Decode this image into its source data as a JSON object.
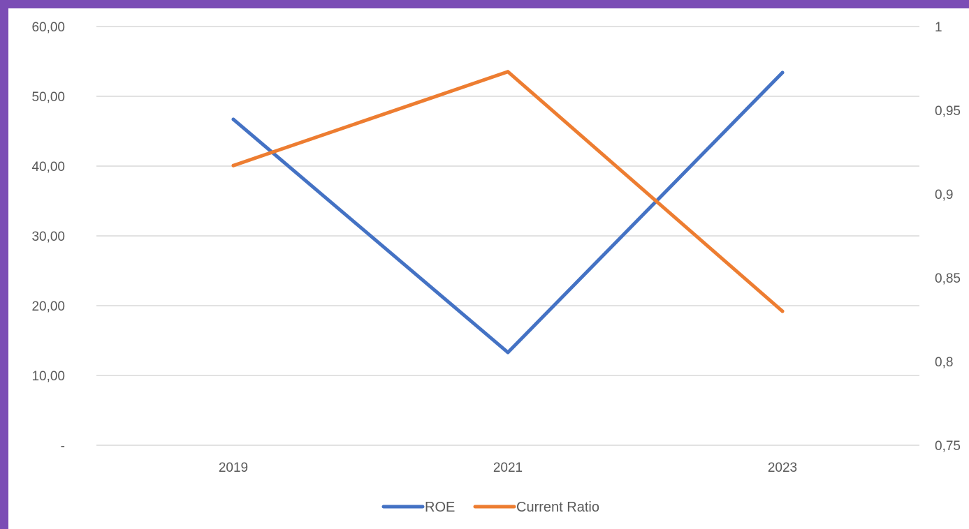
{
  "chart_data": {
    "type": "line",
    "categories": [
      "2019",
      "2021",
      "2023"
    ],
    "series": [
      {
        "name": "ROE",
        "axis": "left",
        "values": [
          46.7,
          13.3,
          53.4
        ],
        "color": "#4472c4"
      },
      {
        "name": "Current Ratio",
        "axis": "right",
        "values": [
          0.917,
          0.973,
          0.83
        ],
        "color": "#ed7d31"
      }
    ],
    "left_axis": {
      "ylim": [
        0,
        60
      ],
      "ticks": [
        0,
        10,
        20,
        30,
        40,
        50,
        60
      ],
      "tick_labels": [
        "-",
        "10,00",
        "20,00",
        "30,00",
        "40,00",
        "50,00",
        "60,00"
      ]
    },
    "right_axis": {
      "ylim": [
        0.75,
        1
      ],
      "ticks": [
        0.75,
        0.8,
        0.85,
        0.9,
        0.95,
        1
      ],
      "tick_labels": [
        "0,75",
        "0,8",
        "0,85",
        "0,9",
        "0,95",
        "1"
      ]
    },
    "grid": true,
    "legend_position": "bottom-center",
    "gridline_color": "#d9d9d9",
    "tick_color": "#595959"
  }
}
